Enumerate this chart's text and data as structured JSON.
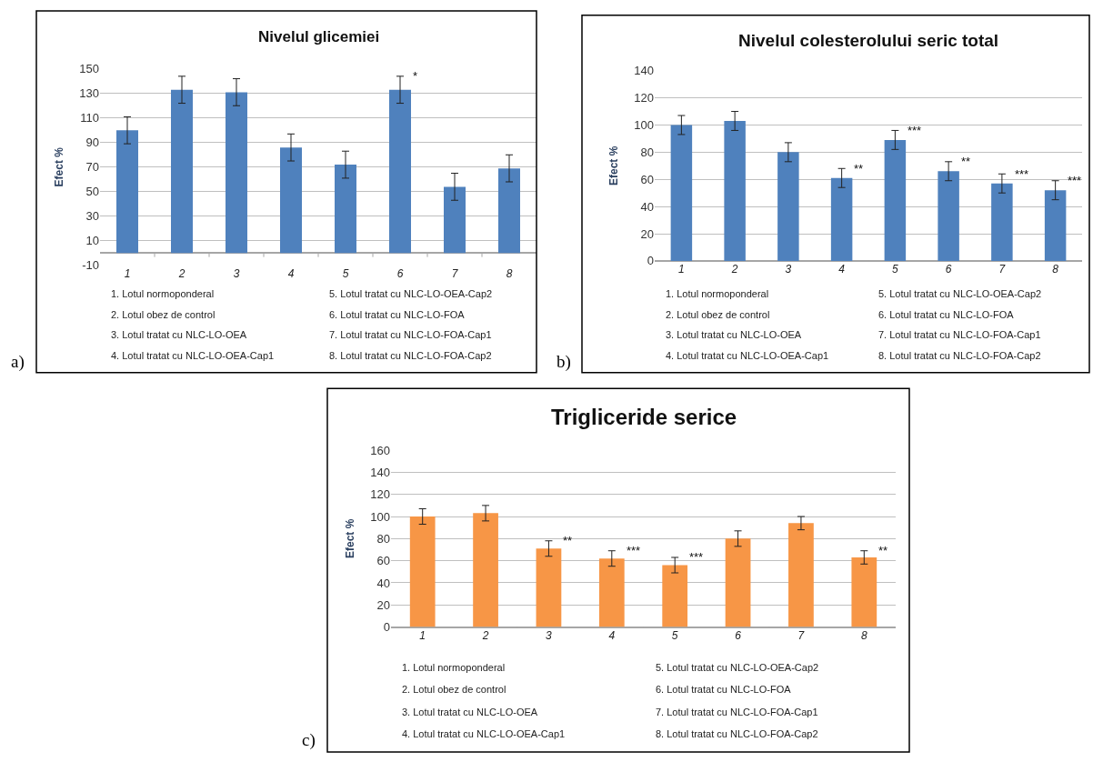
{
  "chart_data": [
    {
      "type": "bar",
      "title": "Nivelul glicemiei",
      "ylabel": "Efect %",
      "categories": [
        "1",
        "2",
        "3",
        "4",
        "5",
        "6",
        "7",
        "8"
      ],
      "color": "#4f81bd",
      "values": [
        100,
        133,
        131,
        86,
        72,
        133,
        54,
        69
      ],
      "errors": [
        11,
        11,
        11,
        11,
        11,
        11,
        11,
        11
      ],
      "ylim": [
        -10,
        150
      ],
      "yticks": [
        -10,
        10,
        30,
        50,
        70,
        90,
        110,
        130,
        150
      ],
      "grid": "y",
      "annotations": [
        {
          "text": "*",
          "x": "6",
          "y": 144
        },
        "1. Lotul normoponderal",
        "2. Lotul obez de control",
        "3. Lotul tratat cu NLC-LO-OEA",
        "4. Lotul tratat cu NLC-LO-OEA-Cap1",
        "5. Lotul tratat cu NLC-LO-OEA-Cap2",
        "6. Lotul tratat cu NLC-LO-FOA",
        "7. Lotul tratat cu NLC-LO-FOA-Cap1",
        "8. Lotul tratat cu NLC-LO-FOA-Cap2",
        "a)"
      ]
    },
    {
      "type": "bar",
      "title": "Nivelul colesterolului seric total",
      "ylabel": "Efect %",
      "categories": [
        "1",
        "2",
        "3",
        "4",
        "5",
        "6",
        "7",
        "8"
      ],
      "color": "#4f81bd",
      "values": [
        100,
        103,
        80,
        61,
        89,
        66,
        57,
        52
      ],
      "errors": [
        7,
        7,
        7,
        7,
        7,
        7,
        7,
        7
      ],
      "ylim": [
        0,
        140
      ],
      "yticks": [
        0,
        20,
        40,
        60,
        80,
        100,
        120,
        140
      ],
      "grid": "y",
      "annotations": [
        {
          "text": "**",
          "x": "4",
          "y": 68
        },
        {
          "text": "***",
          "x": "5",
          "y": 96
        },
        {
          "text": "**",
          "x": "6",
          "y": 73
        },
        {
          "text": "***",
          "x": "7",
          "y": 64
        },
        {
          "text": "***",
          "x": "8",
          "y": 59
        },
        "1. Lotul normoponderal",
        "2. Lotul obez de control",
        "3. Lotul tratat cu NLC-LO-OEA",
        "4. Lotul tratat cu NLC-LO-OEA-Cap1",
        "5. Lotul tratat cu NLC-LO-OEA-Cap2",
        "6. Lotul tratat cu NLC-LO-FOA",
        "7. Lotul tratat cu NLC-LO-FOA-Cap1",
        "8. Lotul tratat cu NLC-LO-FOA-Cap2",
        "b)"
      ]
    },
    {
      "type": "bar",
      "title": "Trigliceride serice",
      "ylabel": "Efect %",
      "categories": [
        "1",
        "2",
        "3",
        "4",
        "5",
        "6",
        "7",
        "8"
      ],
      "color": "#f79646",
      "values": [
        100,
        103,
        71,
        62,
        56,
        80,
        94,
        63
      ],
      "errors": [
        7,
        7,
        7,
        7,
        7,
        7,
        6,
        6
      ],
      "ylim": [
        0,
        160
      ],
      "yticks": [
        0,
        20,
        40,
        60,
        80,
        100,
        120,
        140,
        160
      ],
      "grid": "y",
      "annotations": [
        {
          "text": "**",
          "x": "3",
          "y": 78
        },
        {
          "text": "***",
          "x": "4",
          "y": 69
        },
        {
          "text": "***",
          "x": "5",
          "y": 63
        },
        {
          "text": "**",
          "x": "8",
          "y": 69
        },
        "1. Lotul normoponderal",
        "2. Lotul obez de control",
        "3. Lotul tratat cu NLC-LO-OEA",
        "4. Lotul tratat cu NLC-LO-OEA-Cap1",
        "5. Lotul tratat cu NLC-LO-OEA-Cap2",
        "6. Lotul tratat cu NLC-LO-FOA",
        "7. Lotul tratat cu NLC-LO-FOA-Cap1",
        "8. Lotul tratat cu NLC-LO-FOA-Cap2",
        "c)"
      ]
    }
  ]
}
